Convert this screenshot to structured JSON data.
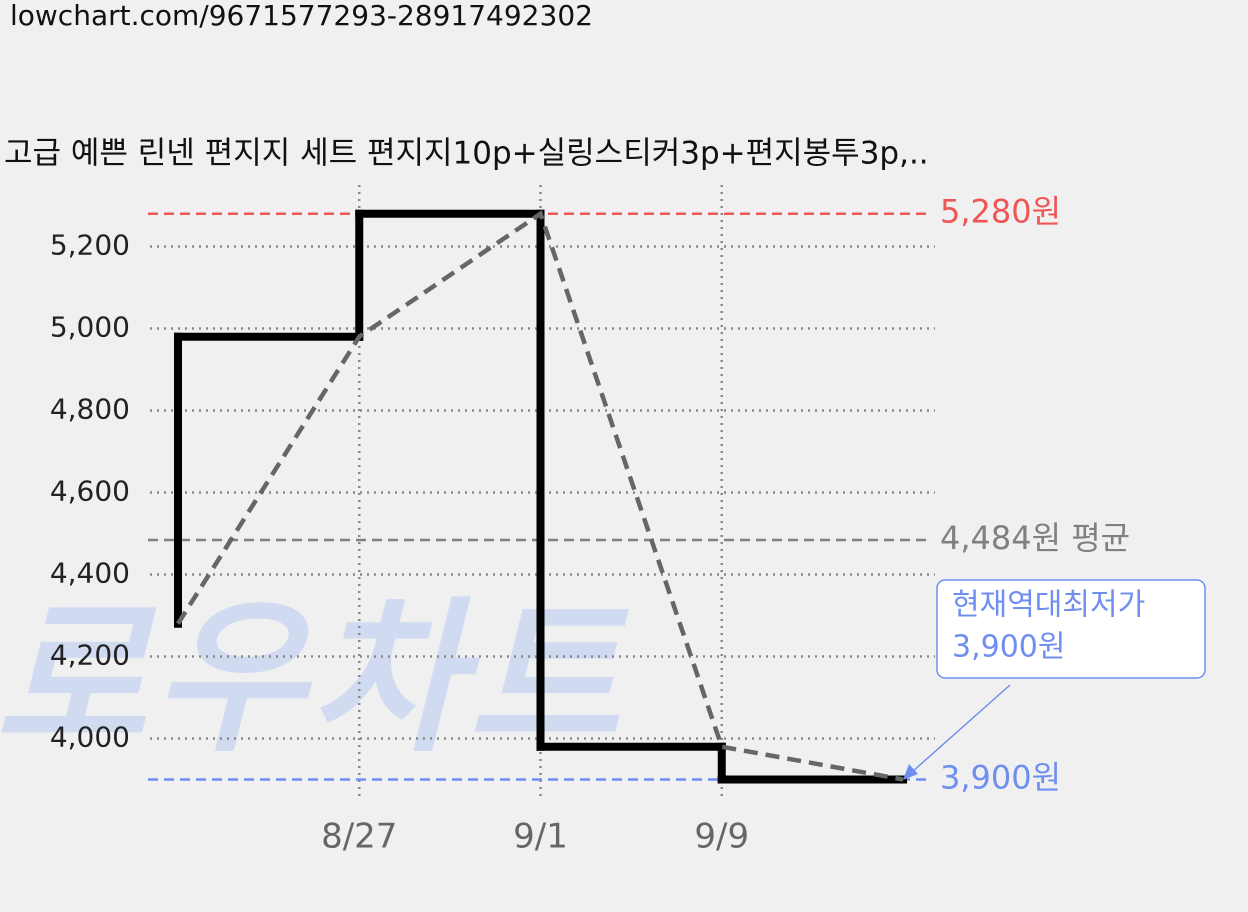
{
  "url": "lowchart.com/9671577293-28917492302",
  "chart_data": {
    "type": "line",
    "title": "고급 예쁜 린넨 편지지 세트 편지지10p+실링스티커3p+편지봉투3p,..",
    "watermark": "로우차트",
    "categories": [
      null,
      "8/27",
      "9/1",
      "9/9",
      null
    ],
    "series": [
      {
        "color": "#666666",
        "values": [
          4280,
          4980,
          5280,
          3980,
          3900
        ]
      }
    ],
    "step_color": "#000000",
    "ylim": [
      3850,
      5350
    ],
    "yticks": [
      {
        "value": 4000,
        "label": "4,000"
      },
      {
        "value": 4200,
        "label": "4,200"
      },
      {
        "value": 4400,
        "label": "4,400"
      },
      {
        "value": 4600,
        "label": "4,600"
      },
      {
        "value": 4800,
        "label": "4,800"
      },
      {
        "value": 5000,
        "label": "5,000"
      },
      {
        "value": 5200,
        "label": "5,200"
      }
    ],
    "grid": true,
    "reference_lines": [
      {
        "value": 5280,
        "label": "5,280원",
        "color": "#f05555"
      },
      {
        "value": 4484,
        "label": "4,484원 평균",
        "color": "#808080"
      },
      {
        "value": 3900,
        "label": "3,900원",
        "color": "#6f8ff0"
      }
    ],
    "annotation": {
      "lines": [
        "현재역대최저가",
        "3,900원"
      ],
      "color": "#6f8ff0"
    }
  }
}
